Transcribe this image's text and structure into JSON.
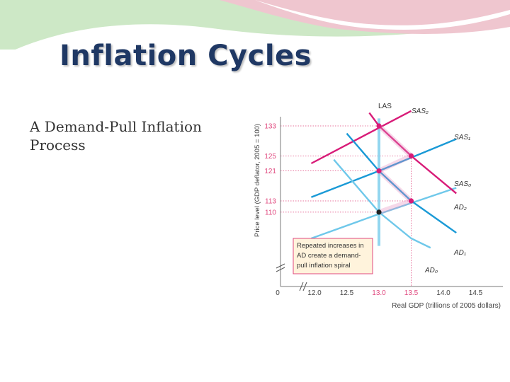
{
  "slide": {
    "title": "Inflation Cycles",
    "body": "A Demand-Pull Inflation Process"
  },
  "colors": {
    "title": "#1f3864",
    "magenta": "#d81b78",
    "blue": "#1a9ad6",
    "light_blue": "#6fc8ea",
    "axis_text": "#e0497f",
    "callout_border": "#e0497f",
    "callout_fill": "#fff3dc"
  },
  "chart_data": {
    "type": "line",
    "xlabel": "Real GDP (trillions of 2005 dollars)",
    "ylabel": "Price level (GDP deflator, 2005 = 100)",
    "x_ticks": [
      "0",
      "12.0",
      "12.5",
      "13.0",
      "13.5",
      "14.0",
      "14.5"
    ],
    "y_ticks": [
      "133",
      "125",
      "121",
      "113",
      "110"
    ],
    "series": [
      {
        "name": "LAS",
        "color": "light_blue",
        "points": [
          [
            13.0,
            101
          ],
          [
            13.0,
            135
          ]
        ]
      },
      {
        "name": "SAS₂",
        "color": "magenta",
        "points": [
          [
            11.95,
            123
          ],
          [
            13.0,
            132.5
          ],
          [
            13.5,
            137
          ]
        ]
      },
      {
        "name": "SAS₁",
        "color": "blue",
        "points": [
          [
            11.95,
            114
          ],
          [
            13.0,
            121
          ],
          [
            14.2,
            129.5
          ]
        ]
      },
      {
        "name": "SAS₀",
        "color": "light_blue",
        "points": [
          [
            11.95,
            103
          ],
          [
            13.0,
            109.5
          ],
          [
            14.2,
            116.5
          ]
        ]
      },
      {
        "name": "AD₂",
        "color": "magenta",
        "points": [
          [
            12.85,
            136.5
          ],
          [
            13.0,
            133
          ],
          [
            13.5,
            125
          ],
          [
            14.2,
            115
          ]
        ]
      },
      {
        "name": "AD₁",
        "color": "blue",
        "points": [
          [
            12.5,
            131
          ],
          [
            13.0,
            121
          ],
          [
            13.5,
            113
          ],
          [
            14.2,
            104.5
          ]
        ]
      },
      {
        "name": "AD₀",
        "color": "light_blue",
        "points": [
          [
            12.3,
            124
          ],
          [
            13.0,
            110
          ],
          [
            13.5,
            103
          ],
          [
            13.8,
            100.5
          ]
        ]
      }
    ],
    "equilibrium_points": [
      {
        "x": 13.0,
        "y": 110,
        "color": "#222222"
      },
      {
        "x": 13.0,
        "y": 121,
        "color": "magenta"
      },
      {
        "x": 13.0,
        "y": 133,
        "color": "magenta"
      },
      {
        "x": 13.5,
        "y": 113,
        "color": "magenta"
      },
      {
        "x": 13.5,
        "y": 125,
        "color": "magenta"
      }
    ],
    "spiral_path": [
      [
        13.0,
        110
      ],
      [
        13.5,
        113
      ],
      [
        13.0,
        121
      ],
      [
        13.5,
        125
      ],
      [
        13.0,
        133
      ]
    ],
    "annotation": {
      "lines": [
        "Repeated increases in",
        "AD create a demand-",
        "pull inflation spiral"
      ]
    }
  }
}
